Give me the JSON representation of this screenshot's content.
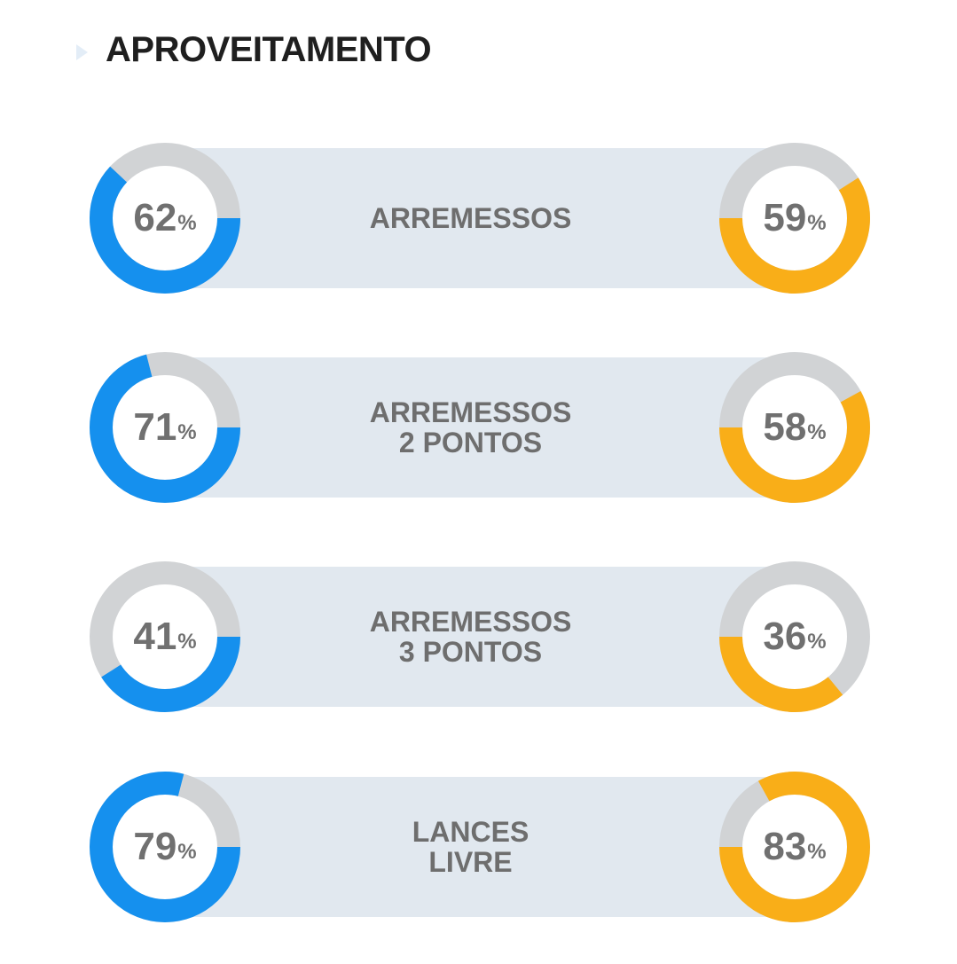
{
  "title": "APROVEITAMENTO",
  "colors": {
    "team_a": "#1590ee",
    "team_b": "#f9ae18",
    "track": "#d1d3d5",
    "band": "#e1e8ef"
  },
  "chart_data": {
    "type": "donut-comparison",
    "percent_symbol": "%",
    "rows": [
      {
        "label_lines": [
          "ARREMESSOS"
        ],
        "left": 62,
        "right": 59
      },
      {
        "label_lines": [
          "ARREMESSOS",
          "2 PONTOS"
        ],
        "left": 71,
        "right": 58
      },
      {
        "label_lines": [
          "ARREMESSOS",
          "3 PONTOS"
        ],
        "left": 41,
        "right": 36
      },
      {
        "label_lines": [
          "LANCES",
          "LIVRE"
        ],
        "left": 79,
        "right": 83
      }
    ]
  }
}
